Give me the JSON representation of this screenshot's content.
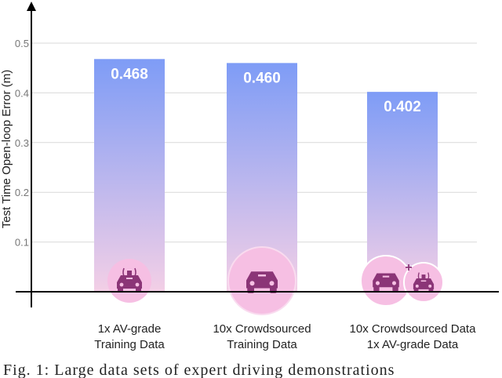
{
  "chart_data": {
    "type": "bar",
    "ylabel": "Test Time Open-loop Error (m)",
    "ylim": [
      0,
      0.5
    ],
    "yticks": [
      "0.1",
      "0.2",
      "0.3",
      "0.4",
      "0.5"
    ],
    "grid": true,
    "categories": [
      [
        "1x AV-grade",
        "Training Data"
      ],
      [
        "10x Crowdsourced",
        "Training Data"
      ],
      [
        "10x Crowdsourced Data",
        "1x AV-grade Data"
      ]
    ],
    "values": [
      0.468,
      0.46,
      0.402
    ],
    "value_labels": [
      "0.468",
      "0.460",
      "0.402"
    ],
    "icons": [
      "av-car-icon",
      "crowdsourced-car-icon",
      "combined-cars-icon"
    ],
    "colors": {
      "bar_top": "#7e9cf6",
      "bar_bottom": "#f3cfe6",
      "icon_bg": "#f6bfe3",
      "icon_fg": "#8b3577",
      "axis": "#000000",
      "grid": "#d9d9d9"
    }
  },
  "caption": "Fig. 1: Large data sets of expert driving demonstrations"
}
